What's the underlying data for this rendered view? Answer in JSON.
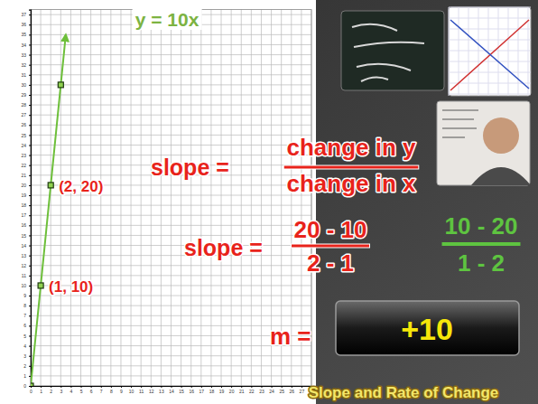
{
  "chart_data": {
    "type": "line",
    "title": "y = 10x",
    "xlim": [
      0,
      28
    ],
    "ylim": [
      0,
      37.5
    ],
    "xticks": [
      0,
      1,
      2,
      3,
      4,
      5,
      6,
      7,
      8,
      9,
      10,
      11,
      12,
      13,
      14,
      15,
      16,
      17,
      18,
      19,
      20,
      21,
      22,
      23,
      24,
      25,
      26,
      27,
      28
    ],
    "yticks": [
      0,
      1,
      2,
      3,
      4,
      5,
      6,
      7,
      8,
      9,
      10,
      11,
      12,
      13,
      14,
      15,
      16,
      17,
      18,
      19,
      20,
      21,
      22,
      23,
      24,
      25,
      26,
      27,
      28,
      29,
      30,
      31,
      32,
      33,
      34,
      35,
      36,
      37
    ],
    "grid": true,
    "series": [
      {
        "type": "line",
        "color": "#6dbf3a",
        "marker": "none",
        "line_style": "arrow",
        "x": [
          0,
          3.5
        ],
        "values": [
          0,
          35
        ]
      },
      {
        "type": "scatter",
        "color": "#8fd14f",
        "marker": "square",
        "x": [
          0,
          1,
          2,
          3
        ],
        "values": [
          0,
          10,
          20,
          30
        ]
      }
    ],
    "annotations": [
      {
        "text": "(1, 10)",
        "x": 1,
        "y": 10
      },
      {
        "text": "(2, 20)",
        "x": 2,
        "y": 20
      }
    ]
  },
  "slide": {
    "formula_label": "slope =",
    "formula_numerator": "change in y",
    "formula_denominator": "change in x",
    "step_label": "slope =",
    "step_numerator": "20 - 10",
    "step_denominator": "2 - 1",
    "alt_numerator": "10 - 20",
    "alt_denominator": "1 - 2",
    "result_label": "m =",
    "result": "+10",
    "footer": "Slope and Rate of Change"
  }
}
